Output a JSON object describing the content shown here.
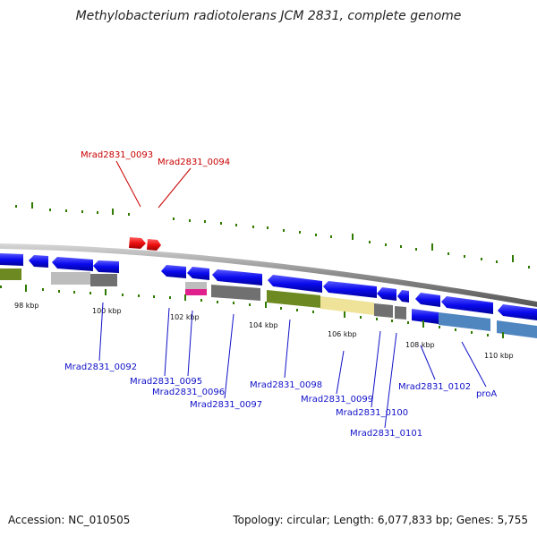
{
  "title": "Methylobacterium radiotolerans JCM 2831, complete genome",
  "accession": "Accession: NC_010505",
  "topology": "Topology: circular; Length: 6,077,833 bp; Genes: 5,755",
  "colors": {
    "gene_blue": "#0a0aee",
    "highlight_red": "#ee1111",
    "label_blue": "#1010c8",
    "label_red": "#c80000",
    "tick_green": "#2f7a00",
    "olive": "#6d8a22",
    "pale_yellow": "#efe39a",
    "steel_blue": "#4f86c0",
    "magenta": "#e0208c",
    "gray": "#707070",
    "light_gray": "#bdbdbd"
  },
  "scale_labels": [
    "98 kbp",
    "100 kbp",
    "102 kbp",
    "104 kbp",
    "106 kbp",
    "108 kbp",
    "110 kbp"
  ],
  "highlight_labels": [
    "Mrad2831_0093",
    "Mrad2831_0094"
  ],
  "gene_labels": [
    "Mrad2831_0092",
    "Mrad2831_0095",
    "Mrad2831_0096",
    "Mrad2831_0097",
    "Mrad2831_0098",
    "Mrad2831_0099",
    "Mrad2831_0100",
    "Mrad2831_0101",
    "Mrad2831_0102",
    "proA"
  ]
}
